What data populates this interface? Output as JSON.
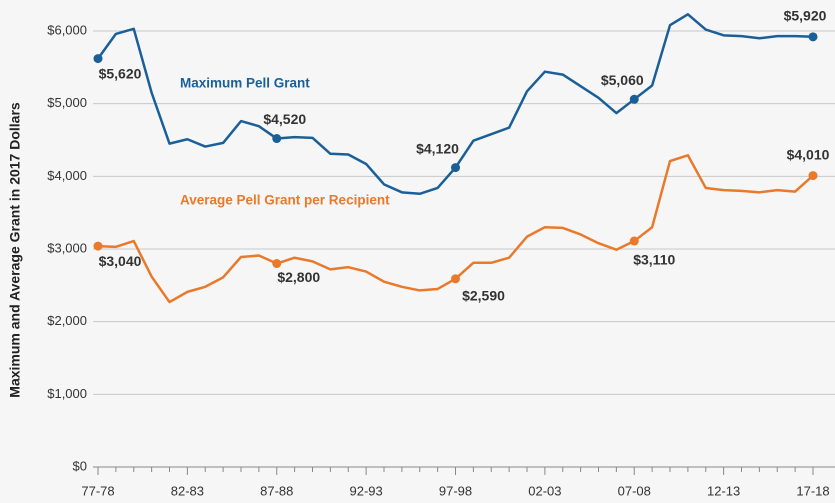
{
  "chart_data": {
    "type": "line",
    "y_axis_label": "Maximum and Average Grant in 2017 Dollars",
    "categories": [
      "77-78",
      null,
      null,
      null,
      null,
      "82-83",
      null,
      null,
      null,
      null,
      "87-88",
      null,
      null,
      null,
      null,
      "92-93",
      null,
      null,
      null,
      null,
      "97-98",
      null,
      null,
      null,
      null,
      "02-03",
      null,
      null,
      null,
      null,
      "07-08",
      null,
      null,
      null,
      null,
      "12-13",
      null,
      null,
      null,
      null,
      "17-18"
    ],
    "series": [
      {
        "name": "Maximum Pell Grant",
        "color": "#1b5f99",
        "values": [
          5620,
          5960,
          6030,
          5150,
          4450,
          4510,
          4410,
          4460,
          4760,
          4690,
          4520,
          4540,
          4530,
          4310,
          4300,
          4170,
          3890,
          3780,
          3760,
          3840,
          4120,
          4490,
          4580,
          4670,
          5170,
          5440,
          5400,
          5240,
          5080,
          4870,
          5060,
          5250,
          6080,
          6230,
          6020,
          5940,
          5930,
          5900,
          5930,
          5930,
          5920
        ],
        "value_labels": [
          "$5,620",
          null,
          null,
          null,
          null,
          null,
          null,
          null,
          null,
          null,
          "$4,520",
          null,
          null,
          null,
          null,
          null,
          null,
          null,
          null,
          null,
          "$4,120",
          null,
          null,
          null,
          null,
          null,
          null,
          null,
          null,
          null,
          "$5,060",
          null,
          null,
          null,
          null,
          null,
          null,
          null,
          null,
          null,
          "$5,920"
        ]
      },
      {
        "name": "Average Pell Grant per Recipient",
        "color": "#e9792b",
        "values": [
          3040,
          3030,
          3110,
          2620,
          2270,
          2410,
          2480,
          2610,
          2890,
          2910,
          2800,
          2880,
          2830,
          2720,
          2750,
          2690,
          2550,
          2480,
          2430,
          2450,
          2590,
          2810,
          2810,
          2880,
          3170,
          3300,
          3290,
          3200,
          3080,
          2990,
          3110,
          3300,
          4210,
          4290,
          3840,
          3810,
          3800,
          3780,
          3810,
          3790,
          4010
        ],
        "value_labels": [
          "$3,040",
          null,
          null,
          null,
          null,
          null,
          null,
          null,
          null,
          null,
          "$2,800",
          null,
          null,
          null,
          null,
          null,
          null,
          null,
          null,
          null,
          "$2,590",
          null,
          null,
          null,
          null,
          null,
          null,
          null,
          null,
          null,
          "$3,110",
          null,
          null,
          null,
          null,
          null,
          null,
          null,
          null,
          null,
          "$4,010"
        ]
      }
    ],
    "ylim": [
      0,
      6000
    ],
    "yticks": [
      {
        "value": 0,
        "label": "$0"
      },
      {
        "value": 1000,
        "label": "$1,000"
      },
      {
        "value": 2000,
        "label": "$2,000"
      },
      {
        "value": 3000,
        "label": "$3,000"
      },
      {
        "value": 4000,
        "label": "$4,000"
      },
      {
        "value": 5000,
        "label": "$5,000"
      },
      {
        "value": 6000,
        "label": "$6,000"
      }
    ],
    "grid": true
  }
}
